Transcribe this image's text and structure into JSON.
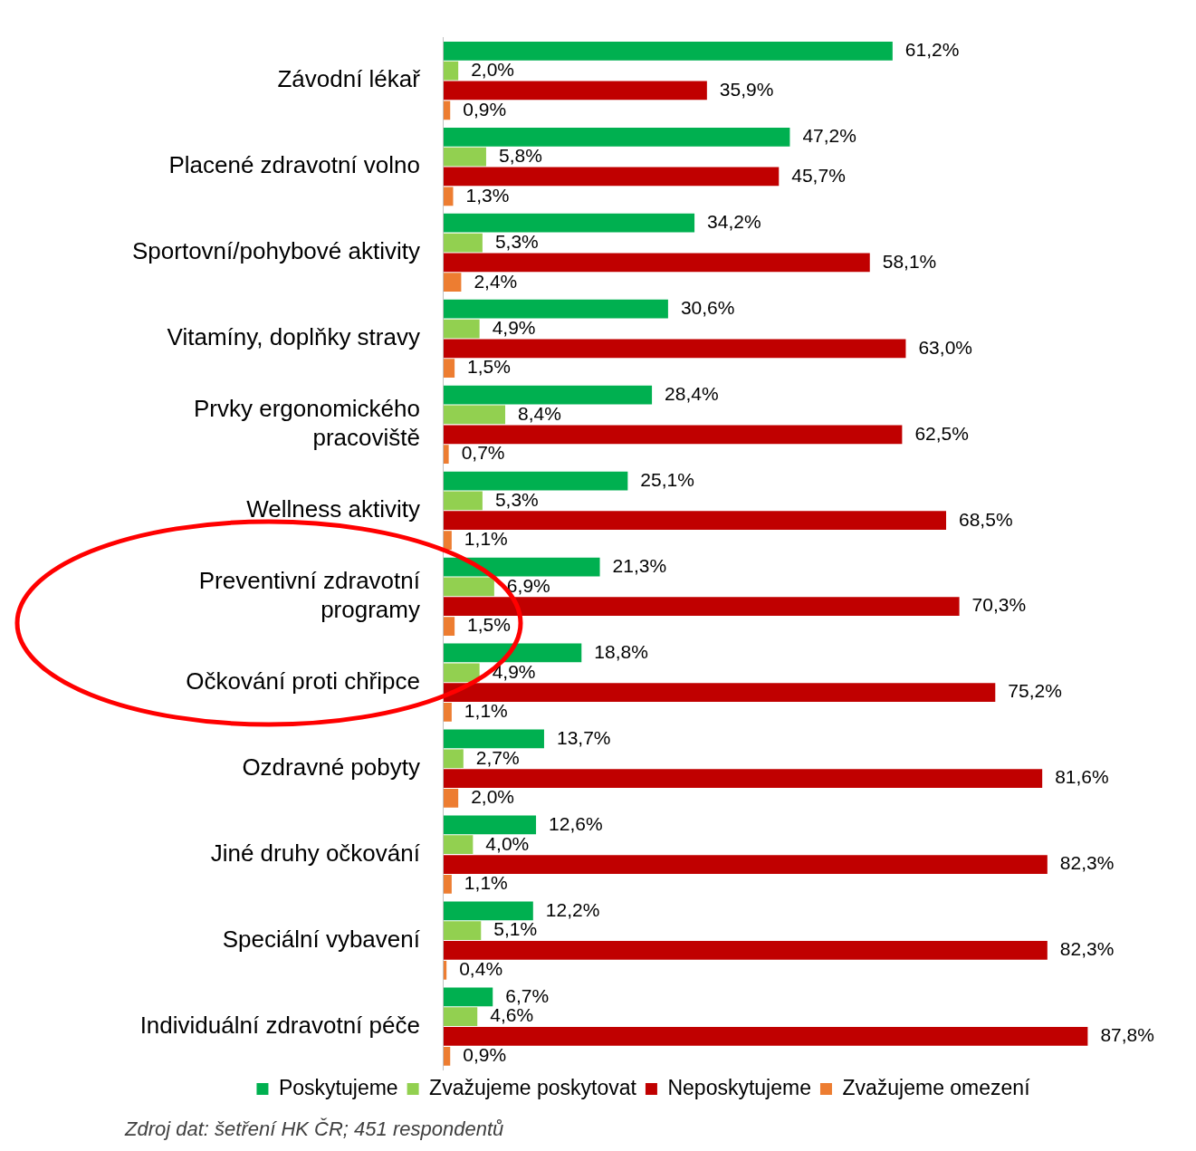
{
  "chart_data": {
    "type": "bar",
    "orientation": "horizontal",
    "legend": "bottom",
    "categories": [
      "Závodní lékař",
      "Placené zdravotní volno",
      "Sportovní/pohybové aktivity",
      "Vitamíny, doplňky stravy",
      "Prvky ergonomického pracoviště",
      "Wellness aktivity",
      "Preventivní zdravotní programy",
      "Očkování proti chřipce",
      "Ozdravné pobyty",
      "Jiné druhy očkování",
      "Speciální vybavení",
      "Individuální zdravotní péče"
    ],
    "series": [
      {
        "name": "Poskytujeme",
        "color": "#00b050",
        "values": [
          61.2,
          47.2,
          34.2,
          30.6,
          28.4,
          25.1,
          21.3,
          18.8,
          13.7,
          12.6,
          12.2,
          6.7
        ],
        "value_labels": [
          "61,2%",
          "47,2%",
          "34,2%",
          "30,6%",
          "28,4%",
          "25,1%",
          "21,3%",
          "18,8%",
          "13,7%",
          "12,6%",
          "12,2%",
          "6,7%"
        ]
      },
      {
        "name": "Zvažujeme poskytovat",
        "color": "#92d050",
        "values": [
          2.0,
          5.8,
          5.3,
          4.9,
          8.4,
          5.3,
          6.9,
          4.9,
          2.7,
          4.0,
          5.1,
          4.6
        ],
        "value_labels": [
          "2,0%",
          "5,8%",
          "5,3%",
          "4,9%",
          "8,4%",
          "5,3%",
          "6,9%",
          "4,9%",
          "2,7%",
          "4,0%",
          "5,1%",
          "4,6%"
        ]
      },
      {
        "name": "Neposkytujeme",
        "color": "#c00000",
        "values": [
          35.9,
          45.7,
          58.1,
          63.0,
          62.5,
          68.5,
          70.3,
          75.2,
          81.6,
          82.3,
          82.3,
          87.8
        ],
        "value_labels": [
          "35,9%",
          "45,7%",
          "58,1%",
          "63,0%",
          "62,5%",
          "68,5%",
          "70,3%",
          "75,2%",
          "81,6%",
          "82,3%",
          "82,3%",
          "87,8%"
        ]
      },
      {
        "name": "Zvažujeme omezení",
        "color": "#ed7d31",
        "values": [
          0.9,
          1.3,
          2.4,
          1.5,
          0.7,
          1.1,
          1.5,
          1.1,
          2.0,
          1.1,
          0.4,
          0.9
        ],
        "value_labels": [
          "0,9%",
          "1,3%",
          "2,4%",
          "1,5%",
          "0,7%",
          "1,1%",
          "1,5%",
          "1,1%",
          "2,0%",
          "1,1%",
          "0,4%",
          "0,9%"
        ]
      }
    ],
    "annotations": [
      "Zdroj dat: šetření HK ČR; 451 respondentů"
    ]
  }
}
